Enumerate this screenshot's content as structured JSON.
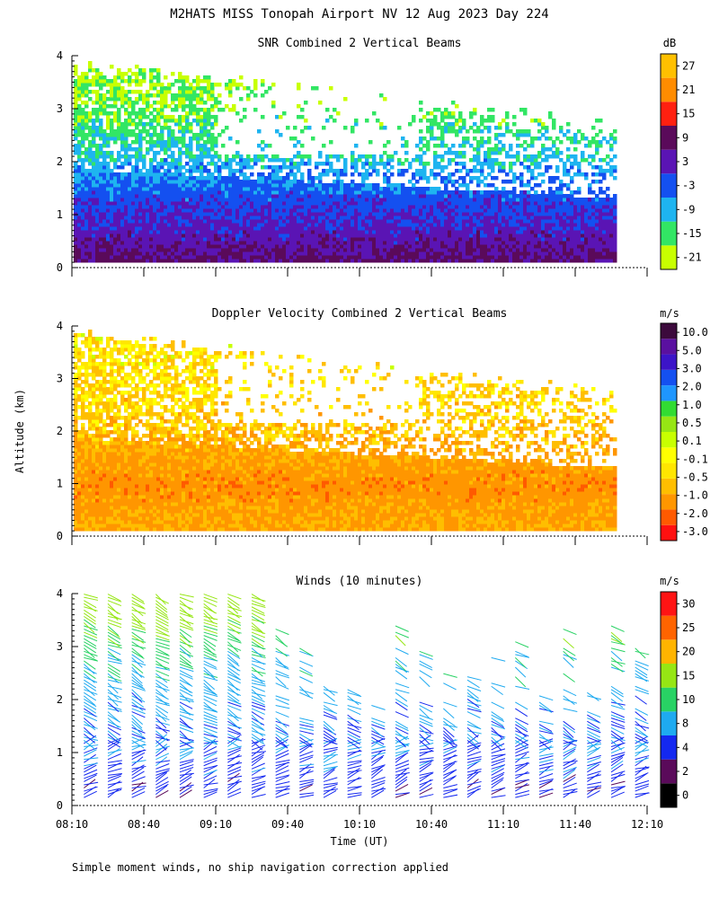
{
  "figure_title": "M2HATS MISS Tonopah Airport NV  12 Aug 2023 Day 224",
  "ylabel": "Altitude (km)",
  "xlabel": "Time (UT)",
  "footnote": "Simple moment winds, no ship navigation correction applied",
  "colors": {
    "snr_colorbar": [
      "#c8ff00",
      "#32e664",
      "#1eb4f0",
      "#1450f0",
      "#5a14b4",
      "#5a0a5a",
      "#ff2010",
      "#ff8c00",
      "#ffc000"
    ],
    "vel_colorbar": [
      "#ff1010",
      "#ff5a00",
      "#ff9600",
      "#ffbe00",
      "#ffe600",
      "#ffff00",
      "#c8ff00",
      "#96e614",
      "#32dc32",
      "#1e96ff",
      "#1450f0",
      "#3c14c8",
      "#5a10a0",
      "#3c0a3c"
    ],
    "wind_colorbar": [
      "#000000",
      "#5a0a5a",
      "#1428f0",
      "#1eaaf0",
      "#28d264",
      "#96e614",
      "#ffb400",
      "#ff6400",
      "#ff1414"
    ]
  },
  "chart_data": [
    {
      "type": "heatmap",
      "title": "SNR Combined 2 Vertical Beams",
      "units": "dB",
      "x_ticks": [
        "08:10",
        "08:40",
        "09:10",
        "09:40",
        "10:10",
        "10:40",
        "11:10",
        "11:40",
        "12:10"
      ],
      "y_ticks": [
        "0",
        "1",
        "2",
        "3",
        "4"
      ],
      "ylim": [
        0,
        4
      ],
      "colorbar_labels": [
        "-21",
        "-15",
        "-9",
        "-3",
        "3",
        "9",
        "15",
        "21",
        "27"
      ],
      "profile_by_altitude_km": [
        [
          0.2,
          8
        ],
        [
          0.5,
          4
        ],
        [
          0.9,
          1
        ],
        [
          1.3,
          -2
        ],
        [
          1.7,
          -6
        ],
        [
          2.1,
          -10
        ],
        [
          2.5,
          -13
        ],
        [
          2.9,
          -16
        ],
        [
          3.3,
          -18
        ],
        [
          3.8,
          -20
        ]
      ]
    },
    {
      "type": "heatmap",
      "title": "Doppler Velocity Combined 2 Vertical Beams",
      "units": "m/s",
      "x_ticks": [
        "08:10",
        "08:40",
        "09:10",
        "09:40",
        "10:10",
        "10:40",
        "11:10",
        "11:40",
        "12:10"
      ],
      "y_ticks": [
        "0",
        "1",
        "2",
        "3",
        "4"
      ],
      "ylim": [
        0,
        4
      ],
      "colorbar_labels": [
        "-3.0",
        "-2.0",
        "-1.0",
        "-0.5",
        "-0.1",
        "0.1",
        "0.5",
        "1.0",
        "2.0",
        "3.0",
        "5.0",
        "10.0"
      ],
      "profile_by_altitude_km": [
        [
          0.3,
          -0.8
        ],
        [
          1.0,
          -1.2
        ],
        [
          1.5,
          -0.9
        ],
        [
          2.0,
          -0.5
        ],
        [
          2.5,
          -0.3
        ],
        [
          3.0,
          -0.2
        ],
        [
          3.6,
          -0.1
        ]
      ]
    },
    {
      "type": "scatter",
      "title": "Winds (10 minutes)",
      "units": "m/s",
      "x_ticks": [
        "08:10",
        "08:40",
        "09:10",
        "09:40",
        "10:10",
        "10:40",
        "11:10",
        "11:40",
        "12:10"
      ],
      "y_ticks": [
        "0",
        "1",
        "2",
        "3",
        "4"
      ],
      "ylim": [
        0,
        4
      ],
      "colorbar_labels": [
        "0",
        "2",
        "4",
        "8",
        "10",
        "15",
        "20",
        "25",
        "30"
      ],
      "profile_times": [
        "08:15",
        "08:25",
        "08:35",
        "08:45",
        "08:55",
        "09:05",
        "09:15",
        "09:25",
        "09:35",
        "09:45",
        "09:55",
        "10:05",
        "10:15",
        "10:25",
        "10:35",
        "10:45",
        "10:55",
        "11:05",
        "11:15",
        "11:25",
        "11:35",
        "11:45",
        "11:55",
        "12:05"
      ],
      "speed_by_altitude_km": [
        [
          0.3,
          4
        ],
        [
          1.0,
          6
        ],
        [
          1.5,
          6
        ],
        [
          2.0,
          7
        ],
        [
          2.5,
          8
        ],
        [
          3.0,
          10
        ],
        [
          3.5,
          13
        ],
        [
          4.0,
          15
        ]
      ]
    }
  ]
}
